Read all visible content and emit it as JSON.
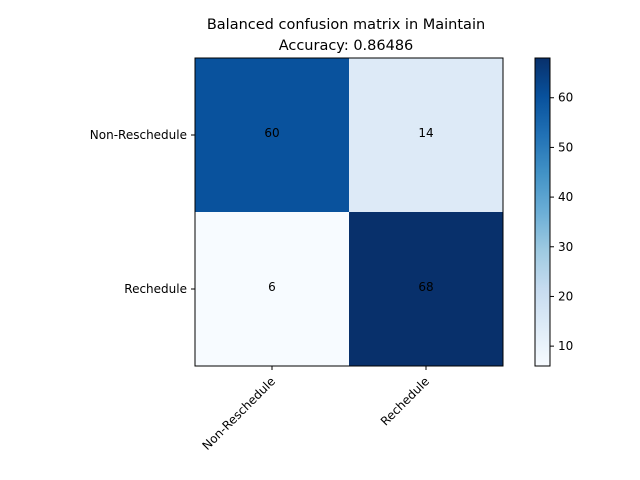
{
  "chart_data": {
    "type": "heatmap",
    "title": "Balanced confusion matrix in Maintain",
    "subtitle": "Accuracy: 0.86486",
    "row_labels": [
      "Non-Reschedule",
      "Rechedule"
    ],
    "col_labels": [
      "Non-Reschedule",
      "Rechedule"
    ],
    "values": [
      [
        60,
        14
      ],
      [
        6,
        68
      ]
    ],
    "colormap": "Blues",
    "color_range": [
      6,
      68
    ],
    "colorbar_ticks": [
      10,
      20,
      30,
      40,
      50,
      60
    ],
    "x_tick_rotation_deg": 45,
    "grid": false,
    "colors": {
      "blues_stops": [
        "#f7fbff",
        "#deebf7",
        "#c6dbef",
        "#9ecae1",
        "#6baed6",
        "#4292c6",
        "#2171b5",
        "#08519c",
        "#08306b"
      ]
    }
  }
}
